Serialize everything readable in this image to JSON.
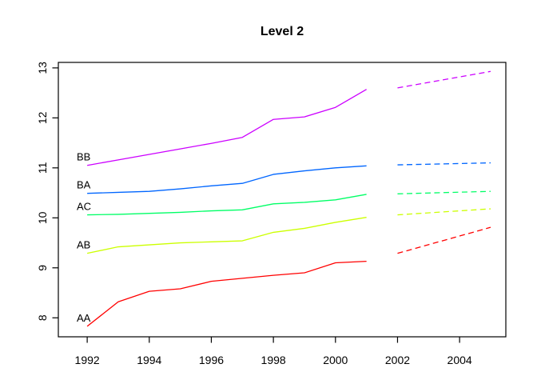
{
  "chart_data": {
    "type": "line",
    "title": "Level 2",
    "xlabel": "",
    "ylabel": "",
    "grid": false,
    "legend_position": "inline-left-of-lines",
    "x": [
      1992,
      1993,
      1994,
      1995,
      1996,
      1997,
      1998,
      1999,
      2000,
      2001
    ],
    "forecast_x": [
      2002,
      2005
    ],
    "series": [
      {
        "name": "BB",
        "color": "#CC00FF",
        "values": [
          11.05,
          11.16,
          11.27,
          11.38,
          11.49,
          11.61,
          11.97,
          12.02,
          12.21,
          12.57
        ],
        "forecast": [
          12.6,
          12.93
        ]
      },
      {
        "name": "BA",
        "color": "#0066FF",
        "values": [
          10.49,
          10.51,
          10.53,
          10.58,
          10.64,
          10.69,
          10.87,
          10.94,
          11.0,
          11.04
        ],
        "forecast": [
          11.06,
          11.1
        ]
      },
      {
        "name": "AC",
        "color": "#00FF66",
        "values": [
          10.06,
          10.07,
          10.09,
          10.11,
          10.14,
          10.16,
          10.28,
          10.31,
          10.36,
          10.47
        ],
        "forecast": [
          10.48,
          10.53
        ]
      },
      {
        "name": "AB",
        "color": "#CCFF00",
        "values": [
          9.29,
          9.42,
          9.46,
          9.5,
          9.52,
          9.54,
          9.71,
          9.79,
          9.91,
          10.01
        ],
        "forecast": [
          10.06,
          10.18
        ]
      },
      {
        "name": "AA",
        "color": "#FF0000",
        "values": [
          7.83,
          8.32,
          8.53,
          8.58,
          8.73,
          8.79,
          8.85,
          8.9,
          9.1,
          9.13
        ],
        "forecast": [
          9.29,
          9.81
        ]
      }
    ],
    "x_ticks": [
      1992,
      1994,
      1996,
      1998,
      2000,
      2002,
      2004
    ],
    "y_ticks": [
      8,
      9,
      10,
      11,
      12,
      13
    ],
    "xlim": [
      1991.07,
      2005.49
    ],
    "ylim": [
      7.62,
      13.11
    ],
    "line_style_historical": "solid",
    "line_style_forecast": "dashed"
  }
}
